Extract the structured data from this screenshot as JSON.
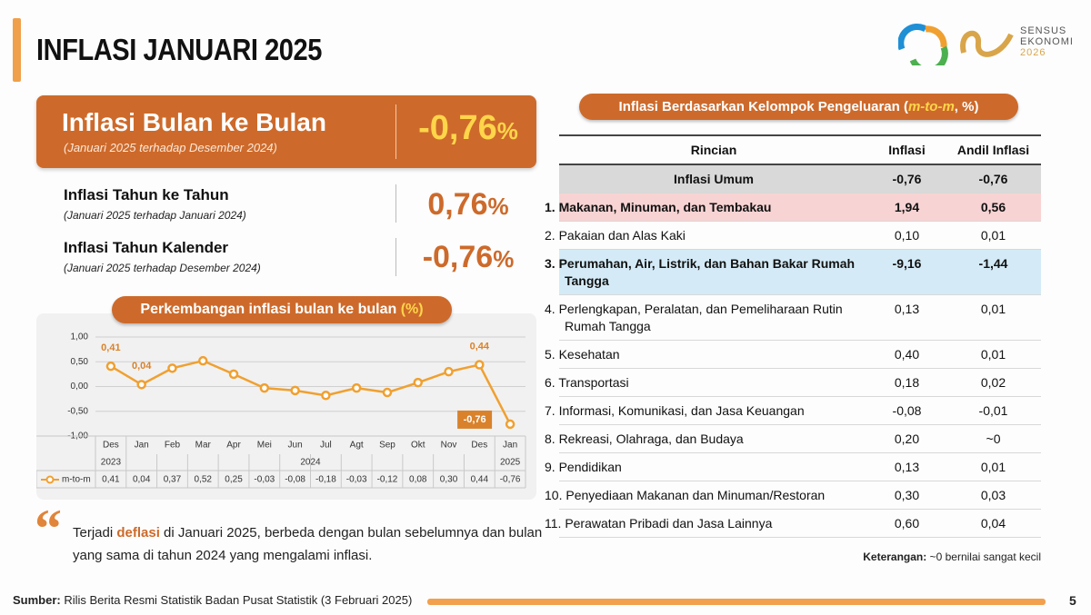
{
  "header": {
    "title": "INFLASI JANUARI 2025",
    "logo": [
      "SENSUS",
      "EKONOMI",
      "2026"
    ]
  },
  "mtm": {
    "label": "Inflasi Bulan ke Bulan",
    "note": "(Januari 2025 terhadap Desember 2024)",
    "value": "-0,76",
    "unit": "%"
  },
  "yoy": {
    "label": "Inflasi Tahun ke Tahun",
    "note": "(Januari 2025 terhadap Januari 2024)",
    "value": "0,76",
    "unit": "%"
  },
  "ytd": {
    "label": "Inflasi Tahun Kalender",
    "note": "(Januari 2025 terhadap Desember 2024)",
    "value": "-0,76",
    "unit": "%"
  },
  "chart_data": {
    "type": "line",
    "title": "Perkembangan inflasi bulan ke bulan",
    "title_unit": "(%)",
    "categories": [
      "Des",
      "Jan",
      "Feb",
      "Mar",
      "Apr",
      "Mei",
      "Jun",
      "Jul",
      "Agt",
      "Sep",
      "Okt",
      "Nov",
      "Des",
      "Jan"
    ],
    "years": [
      "2023",
      "2024",
      "2025"
    ],
    "series": [
      {
        "name": "m-to-m",
        "color": "#f0a030",
        "values": [
          0.41,
          0.04,
          0.37,
          0.52,
          0.25,
          -0.03,
          -0.08,
          -0.18,
          -0.03,
          -0.12,
          0.08,
          0.3,
          0.44,
          -0.76
        ],
        "value_labels": [
          "0,41",
          "0,04",
          "0,37",
          "0,52",
          "0,25",
          "-0,03",
          "-0,08",
          "-0,18",
          "-0,03",
          "-0,12",
          "0,08",
          "0,30",
          "0,44",
          "-0,76"
        ]
      }
    ],
    "ylim": [
      -1,
      1
    ],
    "yticks": [
      {
        "value": -1,
        "label": "-1,00"
      },
      {
        "value": -0.5,
        "label": "-0,50"
      },
      {
        "value": 0,
        "label": "0,00"
      },
      {
        "value": 0.5,
        "label": "0,50"
      },
      {
        "value": 1,
        "label": "1,00"
      }
    ],
    "grid": true
  },
  "quote": {
    "before": "Terjadi ",
    "highlight": "deflasi",
    "after": " di Januari 2025, berbeda dengan bulan sebelumnya dan bulan yang sama di tahun 2024 yang mengalami inflasi."
  },
  "table": {
    "title": "Inflasi Berdasarkan Kelompok Pengeluaran (",
    "title_em": "m-to-m",
    "title_end": ", %)",
    "columns": [
      "Rincian",
      "Inflasi",
      "Andil Inflasi"
    ],
    "rows": [
      [
        "Inflasi Umum",
        "-0,76",
        "-0,76"
      ],
      [
        "1. Makanan, Minuman, dan Tembakau",
        "1,94",
        "0,56"
      ],
      [
        "2. Pakaian dan Alas Kaki",
        "0,10",
        "0,01"
      ],
      [
        "3. Perumahan, Air, Listrik, dan Bahan Bakar Rumah Tangga",
        "-9,16",
        "-1,44"
      ],
      [
        "4. Perlengkapan, Peralatan, dan Pemeliharaan Rutin Rumah Tangga",
        "0,13",
        "0,01"
      ],
      [
        "5. Kesehatan",
        "0,40",
        "0,01"
      ],
      [
        "6. Transportasi",
        "0,18",
        "0,02"
      ],
      [
        "7. Informasi, Komunikasi, dan Jasa Keuangan",
        "-0,08",
        "-0,01"
      ],
      [
        "8. Rekreasi, Olahraga, dan Budaya",
        "0,20",
        "~0"
      ],
      [
        "9. Pendidikan",
        "0,13",
        "0,01"
      ],
      [
        "10. Penyediaan Makanan dan Minuman/Restoran",
        "0,30",
        "0,03"
      ],
      [
        "11. Perawatan Pribadi dan Jasa Lainnya",
        "0,60",
        "0,04"
      ]
    ]
  },
  "note": {
    "label": "Keterangan:",
    "text": " ~0 bernilai sangat kecil"
  },
  "footer": {
    "label": "Sumber:",
    "text": " Rilis Berita Resmi Statistik Badan Pusat Statistik (3 Februari 2025)",
    "page": "5"
  }
}
